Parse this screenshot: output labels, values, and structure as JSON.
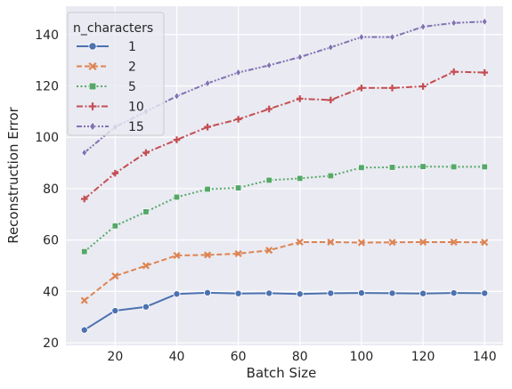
{
  "chart_data": {
    "type": "line",
    "xlabel": "Batch Size",
    "ylabel": "Reconstruction Error",
    "xlim": [
      4,
      146
    ],
    "ylim": [
      19,
      151
    ],
    "xticks": [
      20,
      40,
      60,
      80,
      100,
      120,
      140
    ],
    "yticks": [
      20,
      40,
      60,
      80,
      100,
      120,
      140
    ],
    "grid": true,
    "background": "#eaeaf2",
    "legend": {
      "title": "n_characters",
      "placement": "top-left"
    },
    "x": [
      10,
      20,
      30,
      40,
      50,
      60,
      70,
      80,
      90,
      100,
      110,
      120,
      130,
      140
    ],
    "series": [
      {
        "name": "1",
        "color": "#4c72b0",
        "dash": "solid",
        "marker": "circle",
        "values": [
          25,
          32.5,
          34,
          39,
          39.5,
          39.2,
          39.3,
          39,
          39.3,
          39.4,
          39.3,
          39.2,
          39.4,
          39.3
        ]
      },
      {
        "name": "2",
        "color": "#dd8452",
        "dash": "dashed",
        "marker": "x",
        "values": [
          36.5,
          46,
          50,
          54,
          54.2,
          54.7,
          56,
          59.2,
          59.2,
          59,
          59.1,
          59.2,
          59.2,
          59.1
        ]
      },
      {
        "name": "5",
        "color": "#55a868",
        "dash": "dotted",
        "marker": "square",
        "values": [
          55.5,
          65.5,
          71,
          76.7,
          79.8,
          80.3,
          83.3,
          84,
          85,
          88.2,
          88.3,
          88.6,
          88.5,
          88.5
        ]
      },
      {
        "name": "10",
        "color": "#c44e52",
        "dash": "dashdot",
        "marker": "plus",
        "values": [
          76,
          86,
          94,
          99,
          104,
          107,
          111,
          115,
          114.5,
          119.2,
          119.2,
          119.8,
          125.5,
          125.2
        ]
      },
      {
        "name": "15",
        "color": "#8172b3",
        "dash": "dashdotdot",
        "marker": "diamond",
        "values": [
          94,
          104,
          110,
          116,
          121,
          125.2,
          128,
          131.2,
          135,
          139,
          139,
          143,
          144.5,
          145
        ]
      }
    ]
  }
}
